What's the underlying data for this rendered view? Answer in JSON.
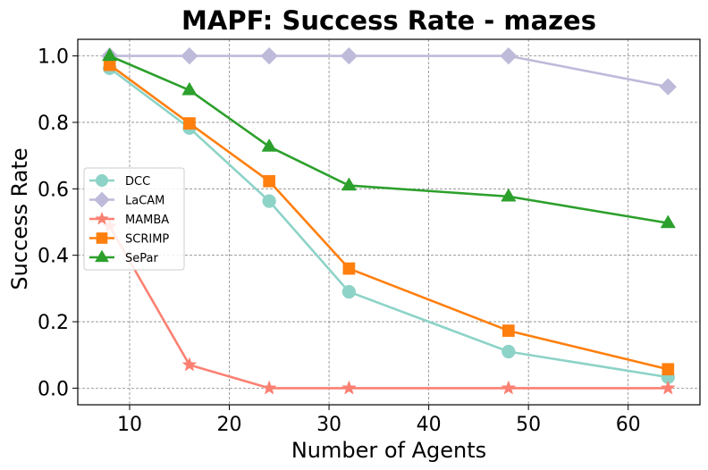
{
  "chart_data": {
    "type": "line",
    "title": "MAPF: Success Rate - mazes",
    "xlabel": "Number of Agents",
    "ylabel": "Success Rate",
    "x": [
      8,
      16,
      24,
      32,
      48,
      64
    ],
    "xlim": [
      4.8,
      67.2
    ],
    "ylim": [
      -0.05,
      1.05
    ],
    "xticks": [
      10,
      20,
      30,
      40,
      50,
      60
    ],
    "yticks": [
      0.0,
      0.2,
      0.4,
      0.6,
      0.8,
      1.0
    ],
    "xtick_labels": [
      "10",
      "20",
      "30",
      "40",
      "50",
      "60"
    ],
    "ytick_labels": [
      "0.0",
      "0.2",
      "0.4",
      "0.6",
      "0.8",
      "1.0"
    ],
    "grid": true,
    "legend_position": "center-left",
    "series": [
      {
        "name": "DCC",
        "color": "#8dd3c7",
        "marker": "circle",
        "values": [
          0.963,
          0.783,
          0.563,
          0.29,
          0.11,
          0.033
        ]
      },
      {
        "name": "LaCAM",
        "color": "#bebada",
        "marker": "diamond",
        "values": [
          1.0,
          1.0,
          1.0,
          1.0,
          1.0,
          0.907
        ]
      },
      {
        "name": "MAMBA",
        "color": "#fb8072",
        "marker": "star",
        "values": [
          0.487,
          0.07,
          0.0,
          0.0,
          0.0,
          0.0
        ]
      },
      {
        "name": "SCRIMP",
        "color": "#ff7f0e",
        "marker": "square",
        "values": [
          0.973,
          0.797,
          0.623,
          0.36,
          0.173,
          0.057
        ]
      },
      {
        "name": "SePar",
        "color": "#2ca02c",
        "marker": "triangle",
        "values": [
          1.0,
          0.897,
          0.727,
          0.61,
          0.577,
          0.497
        ]
      }
    ]
  }
}
